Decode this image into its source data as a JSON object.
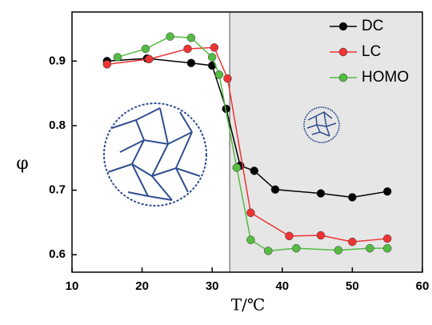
{
  "chart_data": {
    "type": "line",
    "x_label": "T/℃",
    "y_label": "φ",
    "xlim": [
      10,
      60
    ],
    "xticks": [
      10,
      20,
      30,
      40,
      50,
      60
    ],
    "ylim": [
      0.573,
      0.976
    ],
    "yticks": [
      0.6,
      0.7,
      0.8,
      0.9
    ],
    "shade_from": 32.5,
    "shade_color": "#e6e6e6",
    "legend": "upper right",
    "series": [
      {
        "name": "DC",
        "color": "#000000",
        "x": [
          15,
          20.7,
          27,
          30,
          32,
          34,
          36,
          39,
          45.5,
          50,
          55
        ],
        "values": [
          0.9,
          0.904,
          0.897,
          0.893,
          0.826,
          0.738,
          0.73,
          0.701,
          0.695,
          0.689,
          0.698
        ]
      },
      {
        "name": "LC",
        "color": "#ee3333",
        "x": [
          15,
          21,
          26.5,
          30.3,
          32.2,
          35.5,
          41,
          45.5,
          50,
          55
        ],
        "values": [
          0.895,
          0.903,
          0.919,
          0.921,
          0.873,
          0.665,
          0.629,
          0.63,
          0.62,
          0.625
        ]
      },
      {
        "name": "HOMO",
        "color": "#55bb44",
        "x": [
          16.5,
          20.5,
          24,
          27,
          30,
          31,
          33.5,
          35.5,
          38,
          42,
          48,
          52.5,
          55
        ],
        "values": [
          0.906,
          0.919,
          0.938,
          0.936,
          0.906,
          0.879,
          0.735,
          0.623,
          0.606,
          0.61,
          0.607,
          0.61,
          0.61
        ]
      }
    ]
  }
}
